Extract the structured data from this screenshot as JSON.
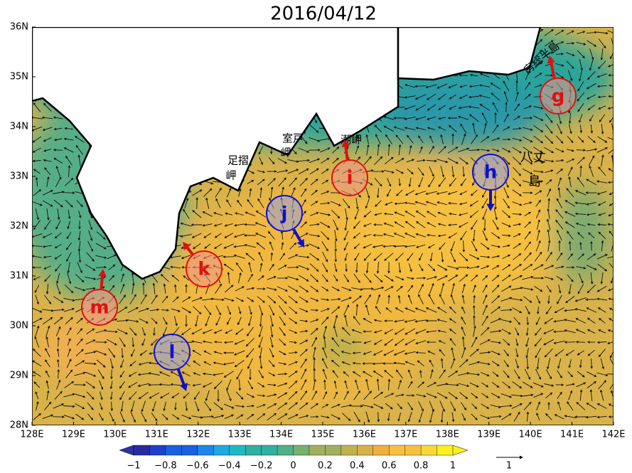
{
  "title": "2016/04/12",
  "lat_labels": [
    "36N",
    "35N",
    "34N",
    "33N",
    "32N",
    "31N",
    "30N",
    "29N",
    "28N"
  ],
  "lon_labels": [
    "128E",
    "129E",
    "130E",
    "131E",
    "132E",
    "133E",
    "134E",
    "135E",
    "136E",
    "137E",
    "138E",
    "139E",
    "140E",
    "141E",
    "142E"
  ],
  "places": {
    "boso": "房総半島",
    "hachijo": [
      "八丈",
      "島"
    ],
    "shiono": "潮岬",
    "muroto": [
      "室戸",
      "岬"
    ],
    "ashizuri": [
      "足摺",
      "岬"
    ]
  },
  "markers": [
    {
      "label": "g",
      "color": "red"
    },
    {
      "label": "h",
      "color": "blue"
    },
    {
      "label": "i",
      "color": "red"
    },
    {
      "label": "j",
      "color": "blue"
    },
    {
      "label": "k",
      "color": "red"
    },
    {
      "label": "l",
      "color": "blue"
    },
    {
      "label": "m",
      "color": "red"
    }
  ],
  "colorbar": {
    "labels": [
      "−1",
      "−0.8",
      "−0.6",
      "−0.4",
      "−0.2",
      "0",
      "0.2",
      "0.4",
      "0.6",
      "0.8",
      "1"
    ]
  },
  "scale_arrow_label": "1"
}
